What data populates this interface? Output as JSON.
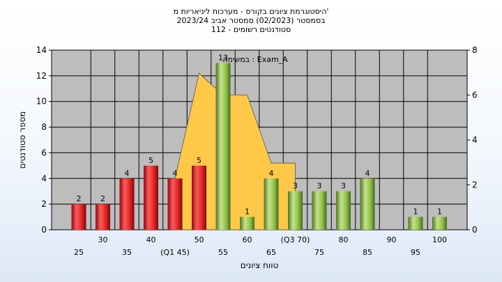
{
  "title": {
    "line1": "היסטוגרמת ציונים בקורס - מערכות ליניאריות מ'",
    "line2": "בסמסטר  (02/2023)  סמסטר אביב 2023/24",
    "line3": "סטודנטים רשומים - 112"
  },
  "chart_data": {
    "type": "bar",
    "xlabel": "טווח ציונים",
    "ylabel": "מספר סטודנטים",
    "ylim": [
      0,
      14
    ],
    "y_ticks": [
      0,
      2,
      4,
      6,
      8,
      10,
      12,
      14
    ],
    "y2lim": [
      0,
      8
    ],
    "y2_ticks": [
      0,
      2,
      4,
      6,
      8
    ],
    "categories": [
      25,
      30,
      35,
      40,
      45,
      50,
      55,
      60,
      65,
      70,
      75,
      80,
      85,
      90,
      95,
      100
    ],
    "category_labels": [
      "25",
      "30",
      "35",
      "40",
      "(Q1 45)",
      "50",
      "55",
      "60",
      "65",
      "(Q3 70)",
      "75",
      "80",
      "85",
      "90",
      "95",
      "100"
    ],
    "values": [
      2,
      2,
      4,
      5,
      4,
      5,
      13,
      1,
      4,
      3,
      3,
      3,
      4,
      0,
      1,
      1
    ],
    "value_labels": [
      "2",
      "2",
      "4",
      "5",
      "4",
      "5",
      "13",
      "1",
      "4",
      "3",
      "3",
      "3",
      "4",
      "",
      "1",
      "1"
    ],
    "bar_colors": [
      "red",
      "red",
      "red",
      "red",
      "red",
      "red",
      "green",
      "green",
      "green",
      "green",
      "green",
      "green",
      "green",
      "green",
      "green",
      "green"
    ],
    "annotation": "במשימה : Exam_A",
    "distribution_area": {
      "x": [
        45,
        45,
        50,
        55,
        60,
        65,
        70,
        70
      ],
      "y": [
        0,
        4,
        12.2,
        10.5,
        10.5,
        5.2,
        5.2,
        0
      ]
    },
    "grid": true,
    "colors": {
      "red_bar": "#e02525",
      "green_bar": "#8fc14a",
      "area_fill": "#ffc947",
      "plot_bg": "#bdbdbd",
      "grid": "#000000"
    }
  }
}
